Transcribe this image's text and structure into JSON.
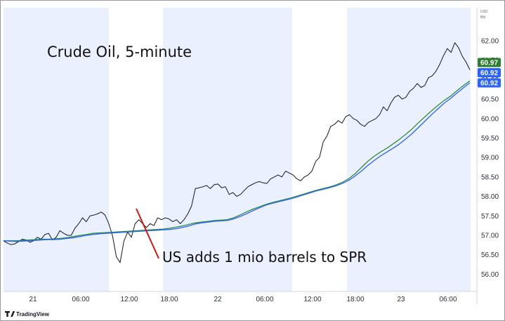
{
  "chart_data": {
    "type": "line",
    "title": "Crude Oil, 5-minute",
    "annotation": "US adds 1 mio barrels to SPR",
    "currency_label": "USD",
    "unit_label": "Bbl",
    "watermark": "TradingView",
    "x_ticks": [
      "21",
      "06:00",
      "12:00",
      "18:00",
      "22",
      "06:00",
      "12:00",
      "18:00",
      "23",
      "06:00"
    ],
    "y_ticks": [
      "62.00",
      "61.50",
      "61.00",
      "60.50",
      "60.00",
      "59.50",
      "59.00",
      "58.50",
      "58.00",
      "57.50",
      "57.00",
      "56.50",
      "56.00"
    ],
    "ylim": [
      55.9,
      62.2
    ],
    "session_shading": "light blue bands mark off-hours sessions",
    "price_tags": [
      {
        "value": "60.97",
        "color": "#2e7d32"
      },
      {
        "value": "60.92",
        "color": "#2962ff"
      },
      {
        "value": "60.92",
        "color": "#2962ff"
      }
    ],
    "series": [
      {
        "role": "price",
        "color": "#131722",
        "values": [
          56.86,
          56.8,
          56.76,
          56.78,
          56.84,
          56.9,
          56.88,
          56.82,
          56.86,
          56.95,
          56.9,
          57.02,
          57.05,
          56.88,
          56.95,
          57.12,
          57.05,
          57.0,
          57.0,
          57.18,
          57.3,
          57.45,
          57.35,
          57.5,
          57.52,
          57.55,
          57.6,
          57.52,
          57.3,
          56.98,
          56.45,
          56.3,
          56.85,
          57.08,
          56.95,
          57.3,
          57.4,
          57.3,
          57.2,
          57.3,
          57.25,
          57.45,
          57.4,
          57.45,
          57.42,
          57.35,
          57.4,
          57.3,
          57.4,
          57.55,
          57.75,
          58.2,
          58.22,
          58.25,
          58.28,
          58.2,
          58.3,
          58.32,
          58.22,
          58.25,
          58.05,
          58.1,
          58.0,
          58.05,
          58.15,
          58.25,
          58.3,
          58.35,
          58.38,
          58.35,
          58.33,
          58.45,
          58.5,
          58.55,
          58.5,
          58.65,
          58.6,
          58.55,
          58.45,
          58.4,
          58.5,
          58.55,
          58.65,
          58.9,
          59.0,
          59.4,
          59.55,
          59.8,
          59.85,
          59.95,
          59.88,
          60.05,
          60.1,
          60.0,
          59.95,
          59.85,
          59.8,
          59.9,
          59.95,
          60.0,
          60.1,
          60.3,
          60.2,
          60.4,
          60.55,
          60.6,
          60.5,
          60.55,
          60.7,
          60.78,
          60.9,
          60.8,
          60.85,
          61.05,
          61.1,
          61.22,
          61.4,
          61.62,
          61.8,
          61.7,
          61.95,
          61.82,
          61.6,
          61.45,
          61.25
        ]
      },
      {
        "role": "moving average",
        "color": "#2e8b3a",
        "values": [
          56.86,
          56.86,
          56.86,
          56.87,
          56.88,
          56.89,
          56.9,
          56.9,
          56.91,
          56.92,
          56.94,
          56.97,
          57.0,
          57.02,
          57.05,
          57.06,
          57.07,
          57.08,
          57.09,
          57.1,
          57.11,
          57.12,
          57.13,
          57.14,
          57.15,
          57.16,
          57.18,
          57.21,
          57.24,
          57.28,
          57.32,
          57.34,
          57.36,
          57.38,
          57.39,
          57.4,
          57.45,
          57.52,
          57.6,
          57.67,
          57.73,
          57.79,
          57.84,
          57.88,
          57.92,
          57.96,
          58.01,
          58.06,
          58.11,
          58.16,
          58.2,
          58.24,
          58.29,
          58.36,
          58.45,
          58.58,
          58.74,
          58.9,
          59.03,
          59.14,
          59.24,
          59.35,
          59.47,
          59.6,
          59.74,
          59.9,
          60.05,
          60.2,
          60.34,
          60.47,
          60.58,
          60.72,
          60.85,
          60.97
        ]
      },
      {
        "role": "moving average",
        "color": "#2962ff",
        "values": [
          56.86,
          56.85,
          56.84,
          56.85,
          56.86,
          56.87,
          56.88,
          56.89,
          56.89,
          56.9,
          56.92,
          56.94,
          56.97,
          57.0,
          57.02,
          57.04,
          57.05,
          57.06,
          57.07,
          57.08,
          57.09,
          57.1,
          57.11,
          57.12,
          57.13,
          57.14,
          57.15,
          57.17,
          57.2,
          57.24,
          57.29,
          57.32,
          57.34,
          57.36,
          57.37,
          57.38,
          57.42,
          57.48,
          57.55,
          57.63,
          57.7,
          57.77,
          57.82,
          57.86,
          57.9,
          57.94,
          57.99,
          58.04,
          58.09,
          58.14,
          58.18,
          58.22,
          58.27,
          58.33,
          58.41,
          58.52,
          58.65,
          58.79,
          58.92,
          59.04,
          59.14,
          59.24,
          59.35,
          59.48,
          59.62,
          59.78,
          59.94,
          60.1,
          60.25,
          60.4,
          60.52,
          60.66,
          60.79,
          60.92
        ]
      }
    ]
  }
}
